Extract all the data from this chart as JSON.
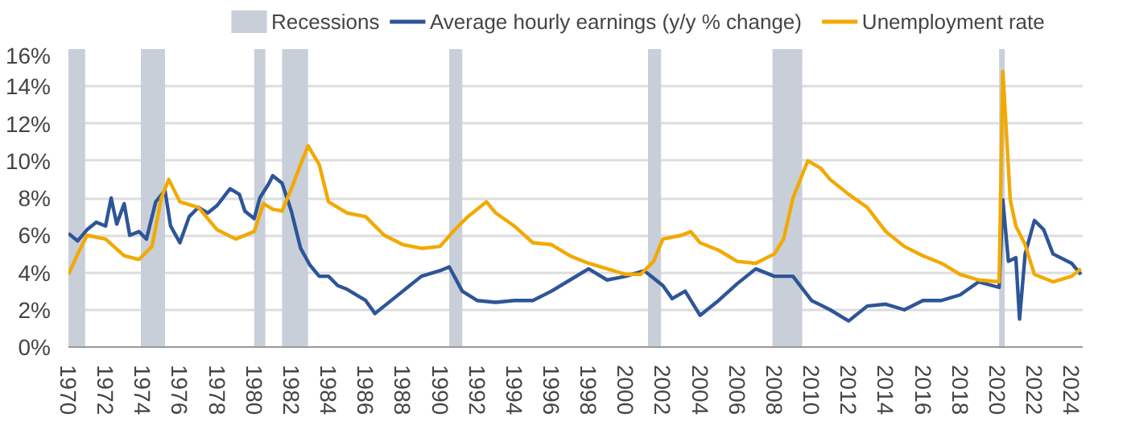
{
  "chart_data": {
    "type": "line",
    "xlim": [
      1970,
      2024.6
    ],
    "ylim": [
      0,
      16
    ],
    "xticks": [
      1970,
      1972,
      1974,
      1976,
      1978,
      1980,
      1982,
      1984,
      1986,
      1988,
      1990,
      1992,
      1994,
      1996,
      1998,
      2000,
      2002,
      2004,
      2006,
      2008,
      2010,
      2012,
      2014,
      2016,
      2018,
      2020,
      2022,
      2024
    ],
    "yticks": [
      {
        "value": 0,
        "label": "0%"
      },
      {
        "value": 2,
        "label": "2%"
      },
      {
        "value": 4,
        "label": "4%"
      },
      {
        "value": 6,
        "label": "6%"
      },
      {
        "value": 8,
        "label": "8%"
      },
      {
        "value": 10,
        "label": "10%"
      },
      {
        "value": 12,
        "label": "12%"
      },
      {
        "value": 14,
        "label": "14%"
      },
      {
        "value": 16,
        "label": "16%"
      }
    ],
    "grid": "y",
    "legend": "top",
    "line_style": "solid",
    "marker": "none",
    "bands": [
      {
        "axis": "x",
        "from": 1970,
        "to": 1970.9,
        "label": "Recessions",
        "color": "#c8cfd8"
      },
      {
        "axis": "x",
        "from": 1973.9,
        "to": 1975.2,
        "color": "#c8cfd8"
      },
      {
        "axis": "x",
        "from": 1980.0,
        "to": 1980.6,
        "color": "#c8cfd8"
      },
      {
        "axis": "x",
        "from": 1981.5,
        "to": 1982.9,
        "color": "#c8cfd8"
      },
      {
        "axis": "x",
        "from": 1990.5,
        "to": 1991.2,
        "color": "#c8cfd8"
      },
      {
        "axis": "x",
        "from": 2001.2,
        "to": 2001.9,
        "color": "#c8cfd8"
      },
      {
        "axis": "x",
        "from": 2007.9,
        "to": 2009.5,
        "color": "#c8cfd8"
      },
      {
        "axis": "x",
        "from": 2020.1,
        "to": 2020.4,
        "color": "#c8cfd8"
      }
    ],
    "series": [
      {
        "name": "Average hourly earnings (y/y % change)",
        "color": "#2e5597",
        "x": [
          1970,
          1970.5,
          1971,
          1971.5,
          1972,
          1972.3,
          1972.6,
          1973,
          1973.3,
          1973.8,
          1974.2,
          1974.7,
          1975.2,
          1975.5,
          1976,
          1976.5,
          1977,
          1977.5,
          1978,
          1978.7,
          1979.2,
          1979.5,
          1980,
          1980.3,
          1980.8,
          1981,
          1981.5,
          1982,
          1982.5,
          1983,
          1983.5,
          1984,
          1984.5,
          1985,
          1986,
          1986.5,
          1987,
          1988,
          1989,
          1990,
          1990.5,
          1991.2,
          1992,
          1993,
          1994,
          1995,
          1996,
          1997,
          1998,
          1999,
          2000,
          2001,
          2002,
          2002.5,
          2003.2,
          2004,
          2005,
          2006,
          2007,
          2008,
          2009,
          2010,
          2011,
          2012,
          2013,
          2014,
          2015,
          2016,
          2017,
          2018,
          2019,
          2020.1,
          2020.3,
          2020.6,
          2021,
          2021.2,
          2021.5,
          2022,
          2022.5,
          2023,
          2024,
          2024.5
        ],
        "values": [
          6.1,
          5.7,
          6.3,
          6.7,
          6.5,
          8.0,
          6.6,
          7.7,
          6.0,
          6.2,
          5.8,
          7.8,
          8.4,
          6.5,
          5.6,
          7.0,
          7.5,
          7.2,
          7.6,
          8.5,
          8.2,
          7.3,
          6.9,
          8.0,
          8.8,
          9.2,
          8.8,
          7.3,
          5.3,
          4.4,
          3.8,
          3.8,
          3.3,
          3.1,
          2.5,
          1.8,
          2.2,
          3.0,
          3.8,
          4.1,
          4.3,
          3.0,
          2.5,
          2.4,
          2.5,
          2.5,
          3.0,
          3.6,
          4.2,
          3.6,
          3.8,
          4.1,
          3.3,
          2.6,
          3.0,
          1.7,
          2.5,
          3.4,
          4.2,
          3.8,
          3.8,
          2.5,
          2.0,
          1.4,
          2.2,
          2.3,
          2.0,
          2.5,
          2.5,
          2.8,
          3.5,
          3.2,
          7.9,
          4.6,
          4.8,
          1.5,
          5.0,
          6.8,
          6.3,
          5.0,
          4.5,
          3.9
        ]
      },
      {
        "name": "Unemployment rate",
        "color": "#f2a900",
        "x": [
          1970,
          1970.5,
          1971,
          1972,
          1973,
          1973.8,
          1974.5,
          1975.0,
          1975.4,
          1976,
          1977,
          1978,
          1979,
          1980,
          1980.5,
          1981,
          1981.5,
          1982,
          1982.5,
          1982.9,
          1983.5,
          1984,
          1985,
          1986,
          1987,
          1988,
          1989,
          1990,
          1990.8,
          1991.5,
          1992.5,
          1993,
          1994,
          1995,
          1996,
          1997,
          1998,
          1999,
          2000,
          2000.8,
          2001.5,
          2002,
          2003,
          2003.5,
          2004,
          2005,
          2006,
          2007,
          2008,
          2008.5,
          2009,
          2009.8,
          2010.5,
          2011,
          2012,
          2013,
          2014,
          2015,
          2016,
          2017,
          2018,
          2019,
          2020.1,
          2020.3,
          2020.7,
          2021,
          2021.5,
          2022,
          2023,
          2024,
          2024.5
        ],
        "values": [
          3.9,
          5.0,
          6.0,
          5.8,
          4.9,
          4.7,
          5.4,
          8.0,
          9.0,
          7.8,
          7.5,
          6.3,
          5.8,
          6.2,
          7.7,
          7.4,
          7.3,
          8.5,
          9.8,
          10.8,
          9.8,
          7.8,
          7.2,
          7.0,
          6.0,
          5.5,
          5.3,
          5.4,
          6.3,
          7.0,
          7.8,
          7.2,
          6.5,
          5.6,
          5.5,
          4.9,
          4.5,
          4.2,
          3.9,
          3.9,
          4.6,
          5.8,
          6.0,
          6.2,
          5.6,
          5.2,
          4.6,
          4.5,
          5.0,
          5.8,
          8.0,
          10.0,
          9.6,
          9.0,
          8.2,
          7.5,
          6.2,
          5.4,
          4.9,
          4.5,
          3.9,
          3.6,
          3.5,
          14.8,
          7.9,
          6.5,
          5.5,
          3.9,
          3.5,
          3.8,
          4.2
        ]
      }
    ]
  }
}
